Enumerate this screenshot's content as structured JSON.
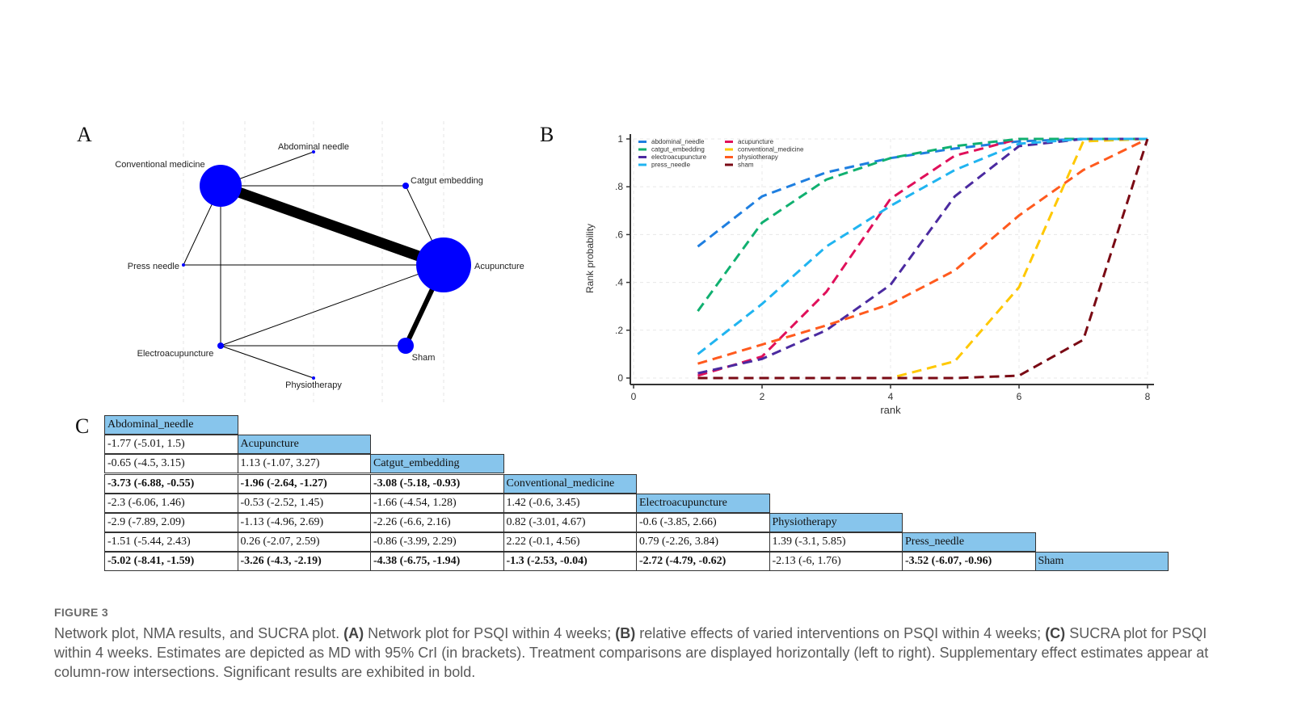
{
  "panels": {
    "a": "A",
    "b": "B",
    "c": "C"
  },
  "network": {
    "node_color": "#0000ff",
    "edge_color": "#000000",
    "nodes": [
      {
        "id": "conventional",
        "label": "Conventional medicine",
        "size": "large"
      },
      {
        "id": "abdominal",
        "label": "Abdominal needle",
        "size": "tiny"
      },
      {
        "id": "catgut",
        "label": "Catgut embedding",
        "size": "small"
      },
      {
        "id": "acupuncture",
        "label": "Acupuncture",
        "size": "xlarge"
      },
      {
        "id": "press",
        "label": "Press needle",
        "size": "tiny"
      },
      {
        "id": "electro",
        "label": "Electroacupuncture",
        "size": "small"
      },
      {
        "id": "physio",
        "label": "Physiotherapy",
        "size": "tiny"
      },
      {
        "id": "sham",
        "label": "Sham",
        "size": "medium"
      }
    ],
    "edges": [
      {
        "from": "conventional",
        "to": "acupuncture",
        "weight": "heavy"
      },
      {
        "from": "acupuncture",
        "to": "sham",
        "weight": "medium"
      },
      {
        "from": "conventional",
        "to": "abdominal",
        "weight": "thin"
      },
      {
        "from": "conventional",
        "to": "catgut",
        "weight": "thin"
      },
      {
        "from": "catgut",
        "to": "acupuncture",
        "weight": "thin"
      },
      {
        "from": "conventional",
        "to": "press",
        "weight": "thin"
      },
      {
        "from": "conventional",
        "to": "electro",
        "weight": "thin"
      },
      {
        "from": "press",
        "to": "acupuncture",
        "weight": "thin"
      },
      {
        "from": "electro",
        "to": "acupuncture",
        "weight": "thin"
      },
      {
        "from": "electro",
        "to": "sham",
        "weight": "thin"
      },
      {
        "from": "electro",
        "to": "physio",
        "weight": "thin"
      }
    ]
  },
  "chart_data": {
    "type": "line",
    "title": "",
    "xlabel": "rank",
    "ylabel": "Rank probability",
    "xlim": [
      0,
      8
    ],
    "ylim": [
      0,
      1
    ],
    "xticks": [
      "0",
      "2",
      "4",
      "6",
      "8"
    ],
    "yticks": [
      "0",
      ".2",
      ".4",
      ".6",
      ".8",
      "1"
    ],
    "grid": true,
    "legend_position": "top-left",
    "x": [
      1,
      2,
      3,
      4,
      5,
      6,
      7,
      8
    ],
    "series": [
      {
        "name": "abdominal_needle",
        "color": "#1f7fe0",
        "values": [
          0.55,
          0.76,
          0.86,
          0.92,
          0.96,
          0.99,
          1.0,
          1.0
        ]
      },
      {
        "name": "acupuncture",
        "color": "#e0105a",
        "values": [
          0.01,
          0.09,
          0.36,
          0.75,
          0.93,
          1.0,
          1.0,
          1.0
        ]
      },
      {
        "name": "catgut_embedding",
        "color": "#10b070",
        "values": [
          0.28,
          0.65,
          0.83,
          0.92,
          0.97,
          1.0,
          1.0,
          1.0
        ]
      },
      {
        "name": "conventional_medicine",
        "color": "#ffc800",
        "values": [
          0.0,
          0.0,
          0.0,
          0.0,
          0.07,
          0.38,
          0.99,
          1.0
        ]
      },
      {
        "name": "electroacupuncture",
        "color": "#4b2aa0",
        "values": [
          0.02,
          0.08,
          0.2,
          0.39,
          0.76,
          0.97,
          1.0,
          1.0
        ]
      },
      {
        "name": "physiotherapy",
        "color": "#ff5a1e",
        "values": [
          0.06,
          0.14,
          0.22,
          0.31,
          0.45,
          0.68,
          0.87,
          1.0
        ]
      },
      {
        "name": "press_needle",
        "color": "#20b4f0",
        "values": [
          0.1,
          0.31,
          0.55,
          0.72,
          0.87,
          0.98,
          1.0,
          1.0
        ]
      },
      {
        "name": "sham",
        "color": "#7a0a14",
        "values": [
          0.0,
          0.0,
          0.0,
          0.0,
          0.0,
          0.01,
          0.16,
          1.0
        ]
      }
    ]
  },
  "league_table": {
    "header_color": "#87c5ec",
    "treatments": [
      "Abdominal_needle",
      "Acupuncture",
      "Catgut_embedding",
      "Conventional_medicine",
      "Electroacupuncture",
      "Physiotherapy",
      "Press_needle",
      "Sham"
    ],
    "rows": [
      [],
      [
        {
          "v": "-1.77 (-5.01, 1.5)",
          "sig": false
        }
      ],
      [
        {
          "v": "-0.65 (-4.5, 3.15)",
          "sig": false
        },
        {
          "v": "1.13 (-1.07, 3.27)",
          "sig": false
        }
      ],
      [
        {
          "v": "-3.73 (-6.88, -0.55)",
          "sig": true
        },
        {
          "v": "-1.96 (-2.64, -1.27)",
          "sig": true
        },
        {
          "v": "-3.08 (-5.18, -0.93)",
          "sig": true
        }
      ],
      [
        {
          "v": "-2.3 (-6.06, 1.46)",
          "sig": false
        },
        {
          "v": "-0.53 (-2.52, 1.45)",
          "sig": false
        },
        {
          "v": "-1.66 (-4.54, 1.28)",
          "sig": false
        },
        {
          "v": "1.42 (-0.6, 3.45)",
          "sig": false
        }
      ],
      [
        {
          "v": "-2.9 (-7.89, 2.09)",
          "sig": false
        },
        {
          "v": "-1.13 (-4.96, 2.69)",
          "sig": false
        },
        {
          "v": "-2.26 (-6.6, 2.16)",
          "sig": false
        },
        {
          "v": "0.82 (-3.01, 4.67)",
          "sig": false
        },
        {
          "v": "-0.6 (-3.85, 2.66)",
          "sig": false
        }
      ],
      [
        {
          "v": "-1.51 (-5.44, 2.43)",
          "sig": false
        },
        {
          "v": "0.26 (-2.07, 2.59)",
          "sig": false
        },
        {
          "v": "-0.86 (-3.99, 2.29)",
          "sig": false
        },
        {
          "v": "2.22 (-0.1, 4.56)",
          "sig": false
        },
        {
          "v": "0.79 (-2.26, 3.84)",
          "sig": false
        },
        {
          "v": "1.39 (-3.1, 5.85)",
          "sig": false
        }
      ],
      [
        {
          "v": "-5.02 (-8.41, -1.59)",
          "sig": true
        },
        {
          "v": "-3.26 (-4.3, -2.19)",
          "sig": true
        },
        {
          "v": "-4.38 (-6.75, -1.94)",
          "sig": true
        },
        {
          "v": "-1.3 (-2.53, -0.04)",
          "sig": true
        },
        {
          "v": "-2.72 (-4.79, -0.62)",
          "sig": true
        },
        {
          "v": "-2.13 (-6, 1.76)",
          "sig": false
        },
        {
          "v": "-3.52 (-6.07, -0.96)",
          "sig": true
        }
      ]
    ]
  },
  "caption": {
    "label": "FIGURE 3",
    "intro": "Network plot, NMA results, and SUCRA plot. ",
    "a_tag": "(A)",
    "a_text": " Network plot for PSQI within 4 weeks; ",
    "b_tag": "(B)",
    "b_text": " relative effects of varied interventions on PSQI within 4 weeks; ",
    "c_tag": "(C)",
    "c_text": " SUCRA plot for PSQI within 4 weeks. Estimates are depicted as MD with 95% CrI (in brackets). Treatment comparisons are displayed horizontally (left to right). Supplementary effect estimates appear at column-row intersections. Significant results are exhibited in bold."
  }
}
